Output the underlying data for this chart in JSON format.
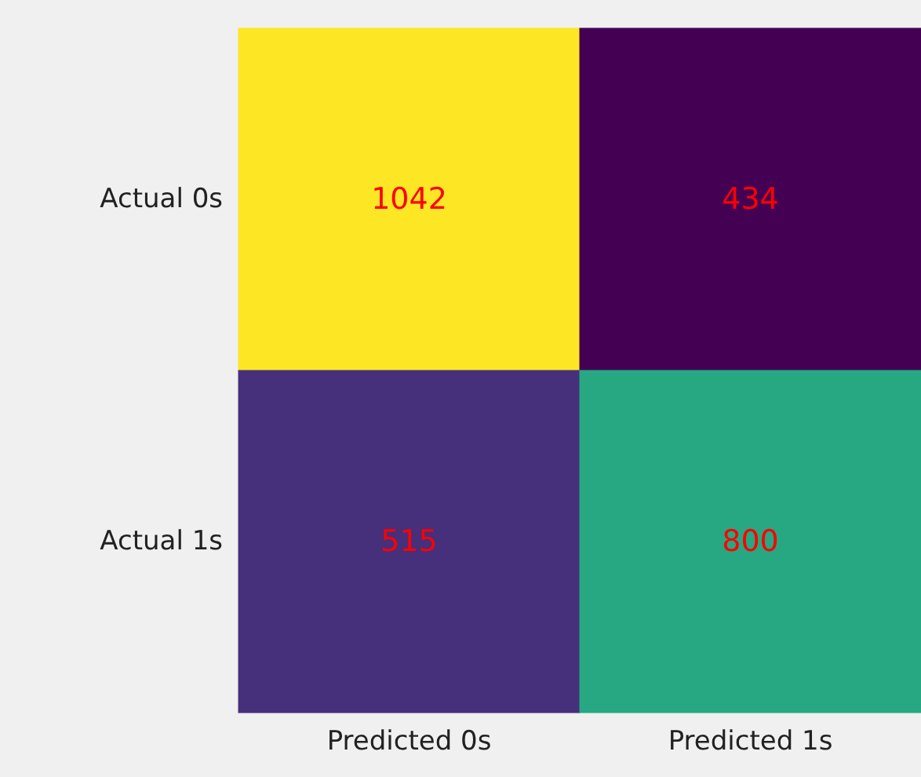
{
  "chart_data": {
    "type": "heatmap",
    "categories": [
      "Predicted 0s",
      "Predicted 1s"
    ],
    "y_categories": [
      "Actual 0s",
      "Actual 1s"
    ],
    "cells": [
      [
        1042,
        434
      ],
      [
        515,
        800
      ]
    ],
    "data_labels": true
  }
}
